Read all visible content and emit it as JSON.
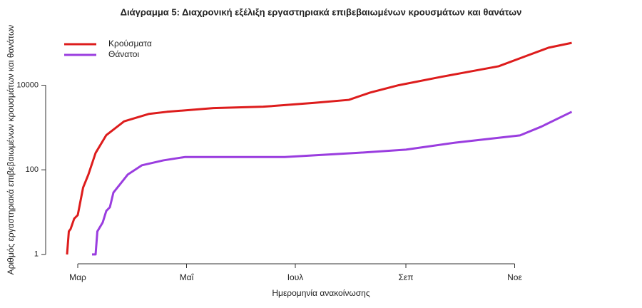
{
  "chart_data": {
    "type": "line",
    "title": "Διάγραμμα 5: Διαχρονική εξέλιξη εργαστηριακά επιβεβαιωμένων κρουσμάτων και θανάτων",
    "x_label": "Ημερομηνία ανακοίνωσης",
    "y_label": "Αριθμός εργαστηριακά επιβεβαιωμένων κρουσμάτων και θανάτων",
    "log_y": true,
    "legend": "top-left",
    "xlim": [
      -18,
      290
    ],
    "xticks": [
      {
        "value": 0,
        "label": "Μαρ"
      },
      {
        "value": 61,
        "label": "Μαΐ"
      },
      {
        "value": 122,
        "label": "Ιουλ"
      },
      {
        "value": 184,
        "label": "Σεπ"
      },
      {
        "value": 245,
        "label": "Νοε"
      }
    ],
    "ylim": [
      0.6,
      180000
    ],
    "yticks": [
      1,
      100,
      10000
    ],
    "series": [
      {
        "name": "Κρούσματα",
        "color": "#dd1c1c",
        "x": [
          -6,
          -5,
          -4,
          -2,
          0,
          3,
          6,
          10,
          16,
          26,
          40,
          50,
          76,
          104,
          132,
          152,
          164,
          180,
          204,
          236,
          252,
          264,
          277
        ],
        "values": [
          1,
          3.5,
          4,
          7,
          8.5,
          38,
          78,
          250,
          660,
          1400,
          2100,
          2350,
          2870,
          3100,
          3800,
          4500,
          6700,
          10000,
          15800,
          28000,
          50000,
          77000,
          100000
        ]
      },
      {
        "name": "Θάνατοι",
        "color": "#9a3ddf",
        "x": [
          8,
          10,
          11,
          14,
          16,
          18,
          20,
          24,
          28,
          36,
          48,
          60,
          116,
          156,
          184,
          212,
          248,
          260,
          277
        ],
        "values": [
          1,
          1,
          3.5,
          5.7,
          10.7,
          13,
          29,
          47,
          77,
          128,
          167,
          200,
          200,
          250,
          300,
          440,
          650,
          1050,
          2350
        ]
      }
    ]
  }
}
